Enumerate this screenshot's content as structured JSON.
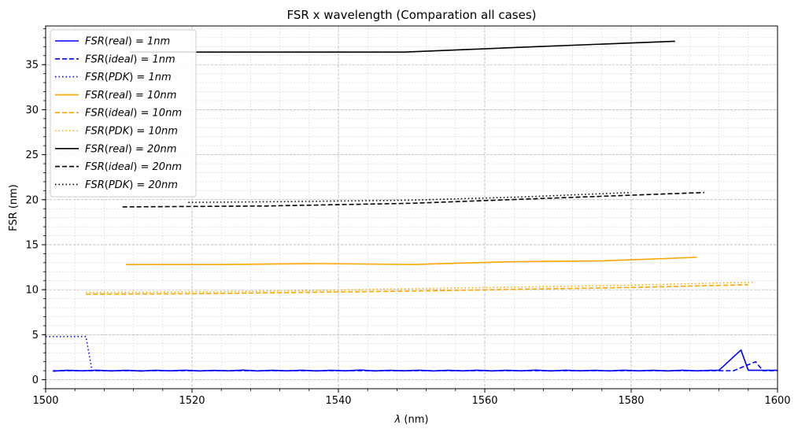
{
  "chart_data": {
    "type": "line",
    "title": "FSR x wavelength (Comparation all cases)",
    "xlabel_symbol": "λ",
    "xlabel_unit": " (nm)",
    "ylabel": "FSR (nm)",
    "xlim": [
      1500,
      1600
    ],
    "ylim": [
      -1,
      39.3
    ],
    "x_ticks": [
      1500,
      1520,
      1540,
      1560,
      1580,
      1600
    ],
    "y_ticks": [
      0,
      5,
      10,
      15,
      20,
      25,
      30,
      35
    ],
    "grid": true,
    "legend_position": "upper-left",
    "colors": {
      "blue": "#0000ff",
      "orange": "#ffa500",
      "black": "#000000",
      "grid": "#b0b0b0"
    },
    "series": [
      {
        "name": "FSR(real) = 1nm",
        "label_pre": "FSR",
        "label_arg": "real",
        "label_post": " = 1nm",
        "color": "#0000ff",
        "dash": "solid",
        "x": [
          1501,
          1503,
          1505,
          1507,
          1509,
          1511,
          1513,
          1515,
          1517,
          1519,
          1521,
          1523,
          1525,
          1527,
          1529,
          1531,
          1533,
          1535,
          1537,
          1539,
          1541,
          1543,
          1545,
          1547,
          1549,
          1551,
          1553,
          1555,
          1557,
          1559,
          1561,
          1563,
          1565,
          1567,
          1569,
          1571,
          1573,
          1575,
          1577,
          1579,
          1581,
          1583,
          1585,
          1587,
          1589,
          1591,
          1592,
          1595,
          1596,
          1600
        ],
        "y": [
          0.95,
          1.05,
          0.98,
          1.06,
          0.97,
          1.05,
          0.96,
          1.05,
          0.98,
          1.06,
          0.97,
          1.04,
          0.98,
          1.07,
          0.97,
          1.05,
          0.98,
          1.06,
          0.97,
          1.05,
          0.98,
          1.08,
          0.97,
          1.05,
          0.98,
          1.06,
          0.97,
          1.05,
          0.98,
          1.06,
          0.97,
          1.05,
          0.98,
          1.07,
          0.97,
          1.06,
          0.98,
          1.05,
          0.97,
          1.06,
          0.98,
          1.05,
          0.97,
          1.06,
          0.98,
          1.05,
          1.05,
          3.3,
          1.05,
          1.05
        ]
      },
      {
        "name": "FSR(ideal) = 1nm",
        "label_pre": "FSR",
        "label_arg": "ideal",
        "label_post": " = 1nm",
        "color": "#0000ff",
        "dash": "dashed",
        "x": [
          1501,
          1510,
          1520,
          1530,
          1540,
          1550,
          1560,
          1570,
          1580,
          1590,
          1594,
          1597,
          1598,
          1600
        ],
        "y": [
          1.0,
          1.0,
          1.0,
          1.0,
          1.0,
          1.0,
          1.0,
          1.0,
          1.0,
          1.0,
          1.0,
          2.0,
          1.0,
          1.0
        ]
      },
      {
        "name": "FSR(PDK) = 1nm",
        "label_pre": "FSR",
        "label_arg": "PDK",
        "label_post": " = 1nm",
        "color": "#0000ff",
        "dash": "dotted",
        "x": [
          1500,
          1505.5,
          1506.3
        ],
        "y": [
          4.8,
          4.8,
          1.2
        ]
      },
      {
        "name": "FSR(real) = 10nm",
        "label_pre": "FSR",
        "label_arg": "real",
        "label_post": " = 10nm",
        "color": "#ffa500",
        "dash": "solid",
        "x": [
          1511,
          1524,
          1537,
          1550,
          1563,
          1576,
          1589
        ],
        "y": [
          12.8,
          12.8,
          12.9,
          12.8,
          13.1,
          13.2,
          13.6
        ]
      },
      {
        "name": "FSR(ideal) = 10nm",
        "label_pre": "FSR",
        "label_arg": "ideal",
        "label_post": " = 10nm",
        "color": "#ffa500",
        "dash": "dashed",
        "x": [
          1505.5,
          1520,
          1535,
          1550,
          1565,
          1580,
          1596
        ],
        "y": [
          9.5,
          9.55,
          9.7,
          9.85,
          10.05,
          10.25,
          10.55
        ]
      },
      {
        "name": "FSR(PDK) = 10nm",
        "label_pre": "FSR",
        "label_arg": "PDK",
        "label_post": " = 10nm",
        "color": "#ffa500",
        "dash": "dotted",
        "x": [
          1505.5,
          1520,
          1535,
          1550,
          1565,
          1580,
          1597
        ],
        "y": [
          9.7,
          9.75,
          9.9,
          10.1,
          10.3,
          10.5,
          10.85
        ]
      },
      {
        "name": "FSR(real) = 20nm",
        "label_pre": "FSR",
        "label_arg": "real",
        "label_post": " = 20nm",
        "color": "#000000",
        "dash": "solid",
        "x": [
          1511.5,
          1530,
          1549,
          1567,
          1586
        ],
        "y": [
          36.4,
          36.4,
          36.4,
          37.0,
          37.6
        ]
      },
      {
        "name": "FSR(ideal) = 20nm",
        "label_pre": "FSR",
        "label_arg": "ideal",
        "label_post": " = 20nm",
        "color": "#000000",
        "dash": "dashed",
        "x": [
          1510.5,
          1530,
          1550,
          1570,
          1590
        ],
        "y": [
          19.2,
          19.3,
          19.6,
          20.2,
          20.8
        ]
      },
      {
        "name": "FSR(PDK) = 20nm",
        "label_pre": "FSR",
        "label_arg": "PDK",
        "label_post": " = 20nm",
        "color": "#000000",
        "dash": "dotted",
        "x": [
          1519.5,
          1535,
          1550,
          1565,
          1580
        ],
        "y": [
          19.7,
          19.8,
          19.95,
          20.3,
          20.8
        ]
      }
    ]
  }
}
